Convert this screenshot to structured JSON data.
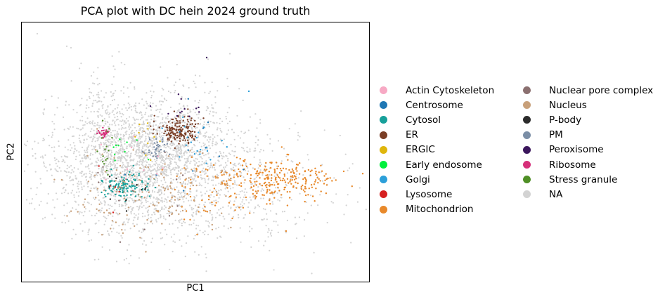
{
  "chart_data": {
    "type": "scatter",
    "title": "PCA plot with DC hein 2024 ground truth",
    "xlabel": "PC1",
    "ylabel": "PC2",
    "xlim": [
      -5,
      15
    ],
    "ylim": [
      -10,
      10
    ],
    "x_ticks_shown": false,
    "y_ticks_shown": false,
    "grid": false,
    "legend_placement": "right, outside, two columns",
    "series": [
      {
        "name": "Actin Cytoskeleton",
        "color": "#f7a9c4"
      },
      {
        "name": "Centrosome",
        "color": "#1f77b4"
      },
      {
        "name": "Cytosol",
        "color": "#17a09a"
      },
      {
        "name": "ER",
        "color": "#7a3e26"
      },
      {
        "name": "ERGIC",
        "color": "#dfb60c"
      },
      {
        "name": "Early endosome",
        "color": "#00f03c"
      },
      {
        "name": "Golgi",
        "color": "#2c9fd9"
      },
      {
        "name": "Lysosome",
        "color": "#d62020"
      },
      {
        "name": "Mitochondrion",
        "color": "#e8892b"
      },
      {
        "name": "Nuclear pore complex",
        "color": "#8b7070"
      },
      {
        "name": "Nucleus",
        "color": "#c8a07a"
      },
      {
        "name": "P-body",
        "color": "#2b2b2b"
      },
      {
        "name": "PM",
        "color": "#7b8ea6"
      },
      {
        "name": "Peroxisome",
        "color": "#3b165c"
      },
      {
        "name": "Ribosome",
        "color": "#d6307a"
      },
      {
        "name": "Stress granule",
        "color": "#4f8f26"
      },
      {
        "name": "NA",
        "color": "#d3d3d3"
      }
    ]
  }
}
